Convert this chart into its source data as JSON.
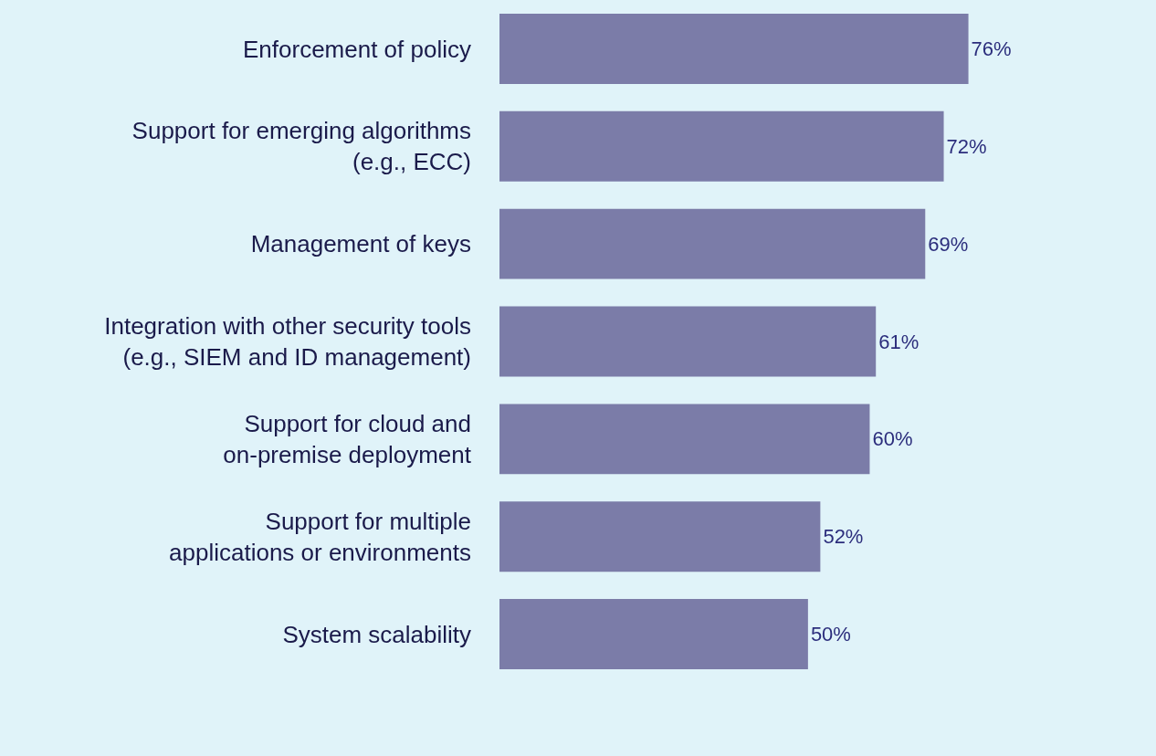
{
  "chart_data": {
    "type": "bar",
    "orientation": "horizontal",
    "categories": [
      "Enforcement of policy",
      "Support for emerging algorithms\n(e.g., ECC)",
      "Management of keys",
      "Integration with other security tools\n(e.g., SIEM and ID management)",
      "Support for cloud and\non-premise deployment",
      "Support for multiple\napplications or environments",
      "System scalability"
    ],
    "values": [
      76,
      72,
      69,
      61,
      60,
      52,
      50
    ],
    "value_labels": [
      "76%",
      "72%",
      "69%",
      "61%",
      "60%",
      "52%",
      "50%"
    ],
    "color": "#7b7ca8"
  }
}
